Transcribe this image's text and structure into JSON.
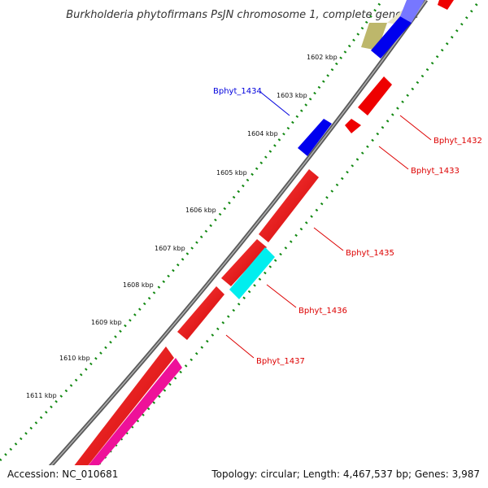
{
  "title": "Burkholderia phytofirmans PsJN chromosome 1, complete genome",
  "ticks": [
    "1602 kbp",
    "1603 kbp",
    "1604 kbp",
    "1605 kbp",
    "1606 kbp",
    "1607 kbp",
    "1608 kbp",
    "1609 kbp",
    "1610 kbp",
    "1611 kbp"
  ],
  "genes": [
    {
      "label": "Bphyt_1434",
      "color": "#0000dd"
    },
    {
      "label": "Bphyt_1432",
      "color": "#dd0000"
    },
    {
      "label": "Bphyt_1433",
      "color": "#dd0000"
    },
    {
      "label": "Bphyt_1435",
      "color": "#dd0000"
    },
    {
      "label": "Bphyt_1436",
      "color": "#dd0000"
    },
    {
      "label": "Bphyt_1437",
      "color": "#dd0000"
    }
  ],
  "colors": {
    "backbone": "#7a7a7a",
    "dots": "#118811",
    "red": "#ee0000",
    "blue": "#0000ee",
    "cyan": "#00eeee",
    "magenta": "#ee1199",
    "khaki": "#bdb76b"
  },
  "footer": {
    "accession": "Accession: NC_010681",
    "summary": "Topology: circular; Length: 4,467,537 bp; Genes: 3,987"
  }
}
